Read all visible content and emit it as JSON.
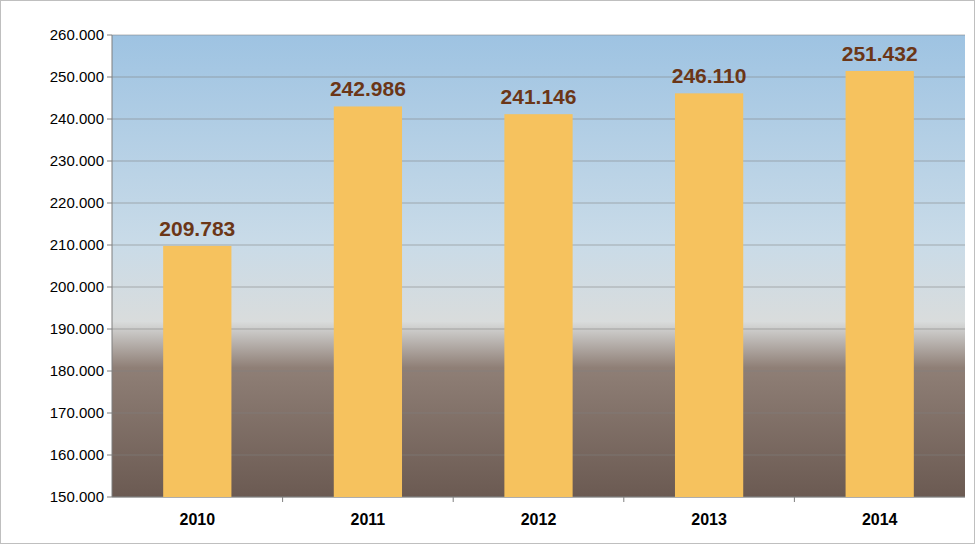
{
  "chart_data": {
    "type": "bar",
    "categories": [
      "2010",
      "2011",
      "2012",
      "2013",
      "2014"
    ],
    "values": [
      209783,
      242986,
      241146,
      246110,
      251432
    ],
    "value_labels": [
      "209.783",
      "242.986",
      "241.146",
      "246.110",
      "251.432"
    ],
    "color": "#f6c25e",
    "ylim": [
      150000,
      260000
    ],
    "yticks": [
      {
        "value": 150000,
        "label": "150.000"
      },
      {
        "value": 160000,
        "label": "160.000"
      },
      {
        "value": 170000,
        "label": "170.000"
      },
      {
        "value": 180000,
        "label": "180.000"
      },
      {
        "value": 190000,
        "label": "190.000"
      },
      {
        "value": 200000,
        "label": "200.000"
      },
      {
        "value": 210000,
        "label": "210.000"
      },
      {
        "value": 220000,
        "label": "220.000"
      },
      {
        "value": 230000,
        "label": "230.000"
      },
      {
        "value": 240000,
        "label": "240.000"
      },
      {
        "value": 250000,
        "label": "250.000"
      },
      {
        "value": 260000,
        "label": "260.000"
      }
    ],
    "grid": true,
    "data_labels": true
  }
}
